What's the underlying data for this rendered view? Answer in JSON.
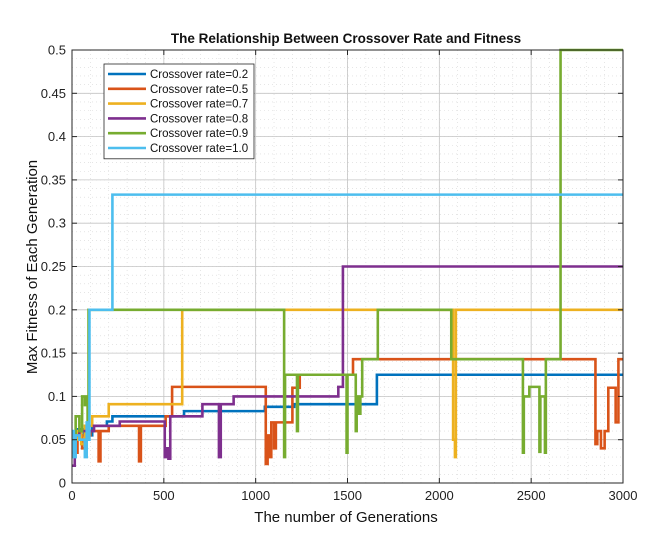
{
  "chart_data": {
    "type": "line",
    "title": "The Relationship Between Crossover Rate and Fitness",
    "xlabel": "The number of Generations",
    "ylabel": "Max Fitness of Each Generation",
    "xlim": [
      0,
      3000
    ],
    "ylim": [
      0,
      0.5
    ],
    "xticks": [
      0,
      500,
      1000,
      1500,
      2000,
      2500,
      3000
    ],
    "xtick_labels": [
      "0",
      "500",
      "1000",
      "1500",
      "2000",
      "2500",
      "3000"
    ],
    "yticks": [
      0,
      0.05,
      0.1,
      0.15,
      0.2,
      0.25,
      0.3,
      0.35,
      0.4,
      0.45,
      0.5
    ],
    "ytick_labels": [
      "0",
      "0.05",
      "0.1",
      "0.15",
      "0.2",
      "0.25",
      "0.3",
      "0.35",
      "0.4",
      "0.45",
      "0.5"
    ],
    "grid": true,
    "legend_position": "top-left",
    "series": [
      {
        "name": "Crossover rate=0.2",
        "color": "#0072BD",
        "points": [
          [
            0,
            0.05
          ],
          [
            25,
            0.062
          ],
          [
            45,
            0.055
          ],
          [
            65,
            0.062
          ],
          [
            90,
            0.055
          ],
          [
            110,
            0.066
          ],
          [
            170,
            0.066
          ],
          [
            190,
            0.071
          ],
          [
            220,
            0.077
          ],
          [
            400,
            0.077
          ],
          [
            420,
            0.077
          ],
          [
            600,
            0.077
          ],
          [
            610,
            0.083
          ],
          [
            1030,
            0.083
          ],
          [
            1050,
            0.088
          ],
          [
            1200,
            0.088
          ],
          [
            1210,
            0.091
          ],
          [
            1650,
            0.091
          ],
          [
            1660,
            0.125
          ],
          [
            3000,
            0.125
          ]
        ]
      },
      {
        "name": "Crossover rate=0.5",
        "color": "#D95319",
        "points": [
          [
            0,
            0.035
          ],
          [
            30,
            0.055
          ],
          [
            55,
            0.04
          ],
          [
            75,
            0.055
          ],
          [
            100,
            0.06
          ],
          [
            140,
            0.06
          ],
          [
            145,
            0.025
          ],
          [
            155,
            0.06
          ],
          [
            200,
            0.066
          ],
          [
            360,
            0.066
          ],
          [
            365,
            0.025
          ],
          [
            375,
            0.066
          ],
          [
            500,
            0.066
          ],
          [
            510,
            0.077
          ],
          [
            540,
            0.077
          ],
          [
            545,
            0.111
          ],
          [
            1050,
            0.111
          ],
          [
            1055,
            0.022
          ],
          [
            1065,
            0.055
          ],
          [
            1075,
            0.03
          ],
          [
            1085,
            0.07
          ],
          [
            1100,
            0.04
          ],
          [
            1110,
            0.07
          ],
          [
            1180,
            0.07
          ],
          [
            1200,
            0.11
          ],
          [
            1230,
            0.11
          ],
          [
            1240,
            0.125
          ],
          [
            1520,
            0.125
          ],
          [
            1530,
            0.143
          ],
          [
            2840,
            0.143
          ],
          [
            2850,
            0.045
          ],
          [
            2860,
            0.06
          ],
          [
            2880,
            0.04
          ],
          [
            2900,
            0.06
          ],
          [
            2920,
            0.11
          ],
          [
            2940,
            0.11
          ],
          [
            2960,
            0.07
          ],
          [
            2975,
            0.143
          ],
          [
            3000,
            0.143
          ]
        ]
      },
      {
        "name": "Crossover rate=0.7",
        "color": "#EDB120",
        "points": [
          [
            0,
            0.05
          ],
          [
            30,
            0.06
          ],
          [
            50,
            0.045
          ],
          [
            70,
            0.066
          ],
          [
            100,
            0.066
          ],
          [
            110,
            0.077
          ],
          [
            190,
            0.077
          ],
          [
            200,
            0.091
          ],
          [
            590,
            0.091
          ],
          [
            600,
            0.2
          ],
          [
            2070,
            0.2
          ],
          [
            2075,
            0.05
          ],
          [
            2085,
            0.03
          ],
          [
            2090,
            0.2
          ],
          [
            3000,
            0.2
          ]
        ]
      },
      {
        "name": "Crossover rate=0.8",
        "color": "#7E2F8E",
        "points": [
          [
            0,
            0.02
          ],
          [
            15,
            0.055
          ],
          [
            40,
            0.06
          ],
          [
            100,
            0.06
          ],
          [
            120,
            0.066
          ],
          [
            250,
            0.066
          ],
          [
            260,
            0.071
          ],
          [
            500,
            0.071
          ],
          [
            505,
            0.03
          ],
          [
            515,
            0.04
          ],
          [
            525,
            0.028
          ],
          [
            535,
            0.077
          ],
          [
            700,
            0.077
          ],
          [
            710,
            0.091
          ],
          [
            790,
            0.091
          ],
          [
            800,
            0.03
          ],
          [
            810,
            0.091
          ],
          [
            870,
            0.091
          ],
          [
            880,
            0.1
          ],
          [
            1440,
            0.1
          ],
          [
            1450,
            0.111
          ],
          [
            1470,
            0.111
          ],
          [
            1475,
            0.25
          ],
          [
            3000,
            0.25
          ]
        ]
      },
      {
        "name": "Crossover rate=0.9",
        "color": "#77AC30",
        "points": [
          [
            0,
            0.05
          ],
          [
            20,
            0.077
          ],
          [
            40,
            0.06
          ],
          [
            55,
            0.1
          ],
          [
            70,
            0.09
          ],
          [
            80,
            0.1
          ],
          [
            85,
            0.06
          ],
          [
            90,
            0.2
          ],
          [
            1150,
            0.2
          ],
          [
            1155,
            0.03
          ],
          [
            1160,
            0.125
          ],
          [
            1220,
            0.125
          ],
          [
            1225,
            0.06
          ],
          [
            1230,
            0.125
          ],
          [
            1490,
            0.125
          ],
          [
            1495,
            0.035
          ],
          [
            1500,
            0.125
          ],
          [
            1540,
            0.125
          ],
          [
            1545,
            0.06
          ],
          [
            1550,
            0.1
          ],
          [
            1560,
            0.08
          ],
          [
            1570,
            0.1
          ],
          [
            1580,
            0.143
          ],
          [
            1660,
            0.143
          ],
          [
            1665,
            0.2
          ],
          [
            2060,
            0.2
          ],
          [
            2065,
            0.143
          ],
          [
            2450,
            0.143
          ],
          [
            2455,
            0.035
          ],
          [
            2460,
            0.1
          ],
          [
            2480,
            0.1
          ],
          [
            2490,
            0.111
          ],
          [
            2540,
            0.111
          ],
          [
            2545,
            0.036
          ],
          [
            2550,
            0.1
          ],
          [
            2570,
            0.1
          ],
          [
            2575,
            0.035
          ],
          [
            2580,
            0.143
          ],
          [
            2655,
            0.143
          ],
          [
            2660,
            0.5
          ],
          [
            3000,
            0.5
          ]
        ]
      },
      {
        "name": "Crossover rate=1.0",
        "color": "#4DBEEE",
        "points": [
          [
            0,
            0.06
          ],
          [
            10,
            0.03
          ],
          [
            20,
            0.055
          ],
          [
            40,
            0.05
          ],
          [
            60,
            0.05
          ],
          [
            70,
            0.03
          ],
          [
            80,
            0.07
          ],
          [
            90,
            0.05
          ],
          [
            95,
            0.2
          ],
          [
            215,
            0.2
          ],
          [
            220,
            0.333
          ],
          [
            3000,
            0.333
          ]
        ]
      }
    ]
  }
}
